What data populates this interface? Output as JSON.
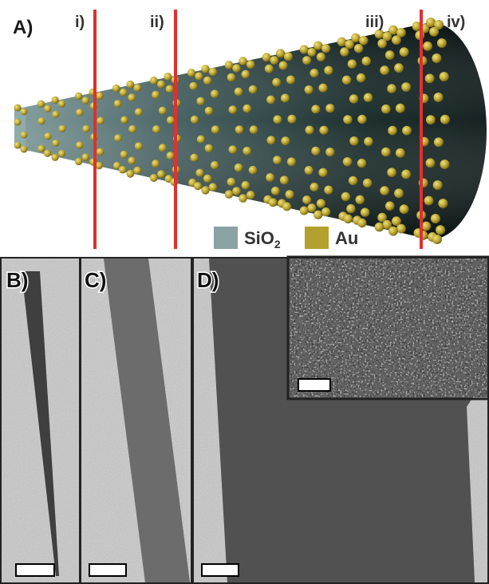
{
  "panels": [
    {
      "label": "A)",
      "sections": [
        "i)",
        "ii)",
        "iii)",
        "iv)"
      ],
      "legend": [
        {
          "text": "SiO",
          "sub": "2"
        },
        {
          "text": "Au"
        }
      ]
    },
    {
      "label": "B)"
    },
    {
      "label": "C)"
    },
    {
      "label": "D)"
    }
  ]
}
